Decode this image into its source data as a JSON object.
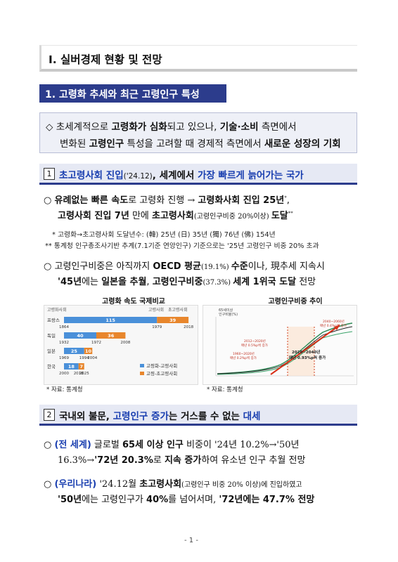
{
  "chapter_title": "Ⅰ. 실버경제 현황 및 전망",
  "section1_title": "1. 고령화 추세와 최근 고령인구 특성",
  "summary": {
    "diamond": "◇",
    "l1a": "초세계적으로 ",
    "l1b": "고령화가 심화",
    "l1c": "되고 있으나, ",
    "l1d": "기술·소비",
    "l1e": " 측면에서",
    "l2a": "변화된 ",
    "l2b": "고령인구",
    "l2c": " 특성을 고려할 때 경제적 측면에서 ",
    "l2d": "새로운 성장의 기회"
  },
  "sub1": {
    "num": "1",
    "a": "초고령사회 진입",
    "b": "('24.12)",
    "c": ", 세계에서 ",
    "d": "가장 빠르게 늙어가는 국가"
  },
  "b1": {
    "bullet": "○",
    "l1a": "유례없는 빠른 속도",
    "l1b": "로 고령화 진행 → ",
    "l1c": "고령화사회 진입 25년",
    "l1d": "*",
    "l1e": ",",
    "l2a": "고령사회 진입 7년",
    "l2b": " 만에 ",
    "l2c": "초고령사회",
    "l2d": "(고령인구비중 20%이상) ",
    "l2e": "도달",
    "l2f": "**"
  },
  "notes": {
    "n1": "* 고령화→초고령사회 도달년수: (韓) 25년 (日) 35년 (獨) 76년 (佛) 154년",
    "n2": "** 통계청 인구총조사기반 추계(7.1기준 연앙인구) 기준으로는 '25년 고령인구 비중 20% 초과"
  },
  "b2": {
    "bullet": "○",
    "l1a": "고령인구비중은 아직까지 ",
    "l1b": "OECD 평균",
    "l1c": "(19.1%) ",
    "l1d": "수준",
    "l1e": "이나, 現추세 지속시",
    "l2a": "'45년",
    "l2b": "에는 ",
    "l2c": "일본을 추월",
    "l2d": ", ",
    "l2e": "고령인구비중",
    "l2f": "(37.3%) ",
    "l2g": "세계 1위국 도달",
    "l2h": " 전망"
  },
  "chart1": {
    "title": "고령화 속도 국제비교",
    "legend_top1": "고령화사회",
    "legend_top2": "고령사회",
    "legend_top3": "초고령사회",
    "legend1": "고령화-고령사회",
    "legend2": "고령-초고령사회",
    "source": "* 자료: 통계청"
  },
  "chart2": {
    "title": "고령인구비중 추이",
    "ylabel1": "65세이상",
    "ylabel2": "인구비율(%)",
    "ann1": "1960~2020년",
    "ann1b": "매년 0.2%p씩 증가",
    "ann2": "2012~2020년",
    "ann2b": "매년 0.5%p씩 증가",
    "ann3": "2020~2040년",
    "ann3b": "매년 0.93%p씩 증가",
    "ann4": "2040~2060년",
    "ann4b": "매년 0.4%p씩 증가",
    "source": "* 자료: 통계청"
  },
  "chart_data": [
    {
      "type": "bar",
      "title": "고령화 속도 국제비교",
      "categories": [
        "프랑스",
        "독일",
        "일본",
        "한국"
      ],
      "series": [
        {
          "name": "고령화-고령사회",
          "values": [
            115,
            40,
            25,
            18
          ]
        },
        {
          "name": "고령-초고령사회",
          "values": [
            39,
            36,
            10,
            7
          ]
        }
      ],
      "start_years": [
        "1864",
        "1932",
        "1969",
        "2000"
      ],
      "mid_years": [
        "1979",
        "1972",
        "1994",
        "2018"
      ],
      "end_years": [
        "2018",
        "2008",
        "2004",
        "2025"
      ]
    },
    {
      "type": "line",
      "title": "고령인구비중 추이",
      "ylabel": "65세이상 인구비율(%)"
    }
  ],
  "page_number": "- 1 -",
  "sub2": {
    "num": "2",
    "a": "국내외 불문, ",
    "b": "고령인구 증가",
    "c": "는 거스를 수 없는 ",
    "d": "대세"
  },
  "b3": {
    "bullet": "○",
    "l1a": "(전 세계)",
    "l1b": " 글로벌 ",
    "l1c": "65세 이상 인구",
    "l1d": " 비중이 '24년 10.2%→'50년",
    "l2a": "16.3%→",
    "l2b": "'72년 20.3%",
    "l2c": "로 ",
    "l2d": "지속 증가",
    "l2e": "하여 유소년 인구 추월 전망"
  },
  "b4": {
    "bullet": "○",
    "l1a": "(우리나라)",
    "l1b": " '24.12월 ",
    "l1c": "초고령사회",
    "l1d": "(고령인구 비중 20% 이상)에 진입하였고",
    "l2a": "'50년",
    "l2b": "에는 고령인구가 ",
    "l2c": "40%",
    "l2d": "를 넘어서며, ",
    "l2e": "'72년에는 47.7% 전망"
  }
}
